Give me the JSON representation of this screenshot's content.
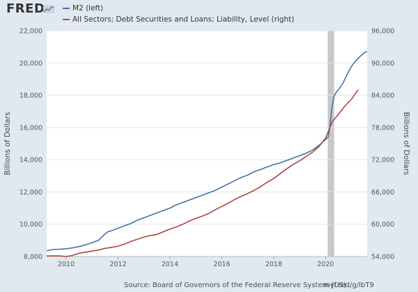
{
  "header": {
    "logo_text": "FRED"
  },
  "footer": {
    "source": "Source: Board of Governors of the Federal Reserve System (US)",
    "url": "myf.red/g/IbT9"
  },
  "chart_data": {
    "type": "line",
    "recession_band": [
      2020.08,
      2020.33
    ],
    "recession_color": "#c8c8c8",
    "grid": true,
    "legend_position": "top-left",
    "xlim": [
      2009.25,
      2021.6
    ],
    "x_ticks": [
      2010,
      2012,
      2014,
      2016,
      2018,
      2020
    ],
    "x_tick_labels": [
      "2010",
      "2012",
      "2014",
      "2016",
      "2018",
      "2020"
    ],
    "left_axis": {
      "label": "Billions of Dollars",
      "ylim": [
        8000,
        22000
      ],
      "ticks": [
        8000,
        10000,
        12000,
        14000,
        16000,
        18000,
        20000,
        22000
      ],
      "tick_labels": [
        "8,000",
        "10,000",
        "12,000",
        "14,000",
        "16,000",
        "18,000",
        "20,000",
        "22,000"
      ]
    },
    "right_axis": {
      "label": "Billions of Dollars",
      "ylim": [
        54000,
        96000
      ],
      "ticks": [
        54000,
        60000,
        66000,
        72000,
        78000,
        84000,
        90000,
        96000
      ],
      "tick_labels": [
        "54,000",
        "60,000",
        "66,000",
        "72,000",
        "78,000",
        "84,000",
        "90,000",
        "96,000"
      ]
    },
    "series": [
      {
        "name": "M2 (left)",
        "axis": "left",
        "color": "#4572a7",
        "x": [
          2009.25,
          2009.5,
          2009.75,
          2010.0,
          2010.25,
          2010.5,
          2010.75,
          2011.0,
          2011.25,
          2011.5,
          2011.6,
          2011.75,
          2012.0,
          2012.25,
          2012.5,
          2012.75,
          2013.0,
          2013.25,
          2013.5,
          2013.75,
          2014.0,
          2014.25,
          2014.5,
          2014.75,
          2015.0,
          2015.25,
          2015.5,
          2015.75,
          2016.0,
          2016.25,
          2016.5,
          2016.75,
          2017.0,
          2017.25,
          2017.5,
          2017.75,
          2018.0,
          2018.25,
          2018.5,
          2018.75,
          2019.0,
          2019.25,
          2019.5,
          2019.75,
          2020.0,
          2020.1,
          2020.17,
          2020.25,
          2020.33,
          2020.42,
          2020.5,
          2020.67,
          2020.83,
          2021.0,
          2021.17,
          2021.33,
          2021.5,
          2021.6
        ],
        "values": [
          8350,
          8430,
          8450,
          8480,
          8530,
          8620,
          8720,
          8860,
          9000,
          9400,
          9520,
          9600,
          9750,
          9900,
          10050,
          10250,
          10400,
          10550,
          10700,
          10850,
          11000,
          11200,
          11350,
          11500,
          11650,
          11800,
          11950,
          12100,
          12300,
          12500,
          12700,
          12900,
          13050,
          13250,
          13400,
          13550,
          13700,
          13800,
          13950,
          14100,
          14250,
          14400,
          14600,
          14900,
          15250,
          15400,
          16100,
          17300,
          17950,
          18200,
          18350,
          18750,
          19300,
          19800,
          20150,
          20400,
          20650,
          20700
        ]
      },
      {
        "name": "All Sectors; Debt Securities and Loans; Liability, Level (right)",
        "axis": "right",
        "color": "#aa4643",
        "x": [
          2009.25,
          2009.75,
          2010.0,
          2010.25,
          2010.5,
          2010.75,
          2011.0,
          2011.25,
          2011.5,
          2011.75,
          2012.0,
          2012.25,
          2012.5,
          2012.75,
          2013.0,
          2013.25,
          2013.5,
          2013.75,
          2014.0,
          2014.25,
          2014.5,
          2014.75,
          2015.0,
          2015.25,
          2015.5,
          2015.75,
          2016.0,
          2016.25,
          2016.5,
          2016.75,
          2017.0,
          2017.25,
          2017.5,
          2017.75,
          2018.0,
          2018.25,
          2018.5,
          2018.75,
          2019.0,
          2019.25,
          2019.5,
          2019.75,
          2020.0,
          2020.25,
          2020.5,
          2020.75,
          2021.0,
          2021.25
        ],
        "values": [
          54100,
          54100,
          54000,
          54200,
          54600,
          54800,
          55000,
          55200,
          55500,
          55700,
          55900,
          56300,
          56800,
          57200,
          57600,
          57900,
          58100,
          58600,
          59100,
          59500,
          60000,
          60600,
          61100,
          61500,
          62000,
          62700,
          63300,
          63900,
          64600,
          65200,
          65700,
          66300,
          67000,
          67800,
          68500,
          69400,
          70300,
          71100,
          71800,
          72600,
          73400,
          74500,
          76000,
          79000,
          80500,
          82000,
          83300,
          85000
        ]
      }
    ]
  }
}
